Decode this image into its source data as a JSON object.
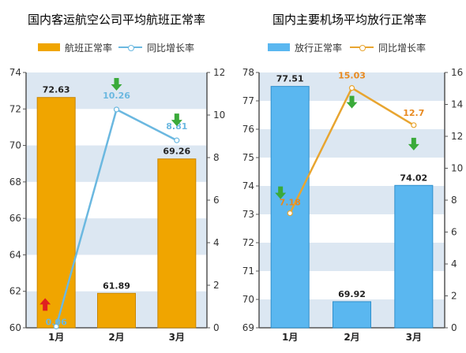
{
  "charts": [
    {
      "id": "chart1",
      "title": "国内客运航空公司平均航班正常率",
      "legend": {
        "bar": "航班正常率",
        "line": "同比增长率"
      },
      "colors": {
        "bar": "#f0a500",
        "bar_edge": "#c98600",
        "line": "#6bb8e0",
        "line_label": "#6bb8e0",
        "band": "#dce7f2"
      }
    },
    {
      "id": "chart2",
      "title": "国内主要机场平均放行正常率",
      "legend": {
        "bar": "放行正常率",
        "line": "同比增长率"
      },
      "colors": {
        "bar": "#5ab7f0",
        "bar_edge": "#2f8fcc",
        "line": "#e8a530",
        "line_label": "#e88a20",
        "band": "#dce7f2"
      }
    }
  ],
  "chart_data": [
    {
      "type": "bar",
      "categories": [
        "1月",
        "2月",
        "3月"
      ],
      "series": [
        {
          "name": "航班正常率",
          "type": "bar",
          "axis": "left",
          "values": [
            72.63,
            61.89,
            69.26
          ]
        },
        {
          "name": "同比增长率",
          "type": "line",
          "axis": "right",
          "values": [
            0.06,
            10.26,
            8.81
          ]
        }
      ],
      "value_labels": {
        "bar": [
          "72.63",
          "61.89",
          "69.26"
        ],
        "line": [
          "0.06",
          "10.26",
          "8.81"
        ]
      },
      "trend_arrows": [
        "up",
        "down",
        "down"
      ],
      "ylim_left": [
        60,
        74
      ],
      "yticks_left": [
        60,
        62,
        64,
        66,
        68,
        70,
        72,
        74
      ],
      "ylim_right": [
        0,
        12
      ],
      "yticks_right": [
        0,
        2,
        4,
        6,
        8,
        10,
        12
      ],
      "grid": "horizontal bands",
      "legend_position": "top"
    },
    {
      "type": "bar",
      "categories": [
        "1月",
        "2月",
        "3月"
      ],
      "series": [
        {
          "name": "放行正常率",
          "type": "bar",
          "axis": "left",
          "values": [
            77.51,
            69.92,
            74.02
          ]
        },
        {
          "name": "同比增长率",
          "type": "line",
          "axis": "right",
          "values": [
            7.18,
            15.03,
            12.7
          ]
        }
      ],
      "value_labels": {
        "bar": [
          "77.51",
          "69.92",
          "74.02"
        ],
        "line": [
          "7.18",
          "15.03",
          "12.7"
        ]
      },
      "trend_arrows": [
        "down",
        "down",
        "down"
      ],
      "ylim_left": [
        69,
        78
      ],
      "yticks_left": [
        69,
        70,
        71,
        72,
        73,
        74,
        75,
        76,
        77,
        78
      ],
      "ylim_right": [
        0,
        16
      ],
      "yticks_right": [
        0,
        2,
        4,
        6,
        8,
        10,
        12,
        14,
        16
      ],
      "grid": "horizontal bands",
      "legend_position": "top"
    }
  ]
}
